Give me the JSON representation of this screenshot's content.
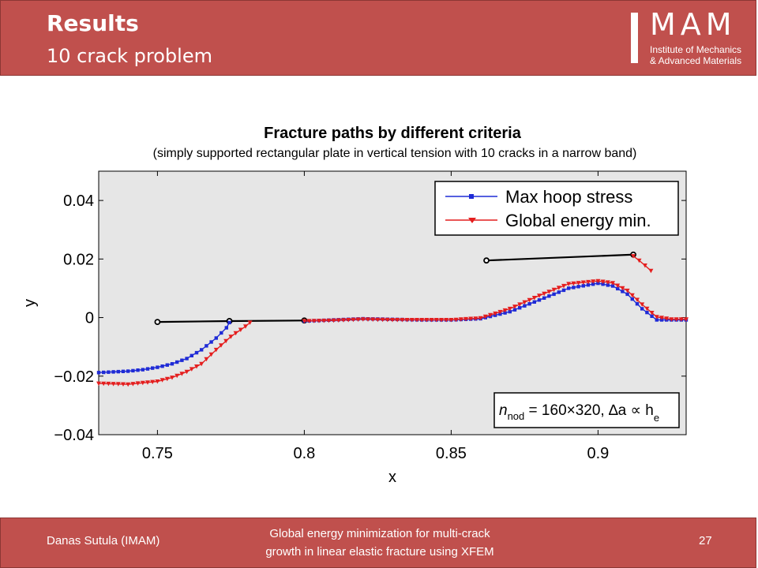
{
  "header": {
    "title": "Results",
    "subtitle": "10 crack problem",
    "logo": {
      "abbr": "MAM",
      "line1": "Institute of Mechanics",
      "line2": "& Advanced Materials"
    }
  },
  "footer": {
    "author": "Danas Sutula (IMAM)",
    "paper_line1": "Global energy minimization for multi-crack",
    "paper_line2": "growth in linear elastic fracture using XFEM",
    "page": "27"
  },
  "colors": {
    "header_bg": "#c0504d",
    "plot_bg": "#e6e6e6",
    "blue": "#1f2bd6",
    "red": "#e41e1e"
  },
  "chart_data": {
    "type": "line",
    "title": "Fracture paths by different criteria",
    "subtitle": "(simply supported rectangular plate in vertical tension with 10 cracks in a narrow band)",
    "xlabel": "x",
    "ylabel": "y",
    "xlim": [
      0.73,
      0.93
    ],
    "ylim": [
      -0.04,
      0.05
    ],
    "xticks": [
      "0.75",
      "0.8",
      "0.85",
      "0.9"
    ],
    "yticks": [
      "−0.04",
      "−0.02",
      "0",
      "0.02",
      "0.04"
    ],
    "xtick_values": [
      0.75,
      0.8,
      0.85,
      0.9
    ],
    "ytick_values": [
      -0.04,
      -0.02,
      0,
      0.02,
      0.04
    ],
    "legend_position": "top-right",
    "annotation": {
      "n": "n",
      "sub": "nod",
      "rest": " = 160×320, ∆a ∝ h",
      "sub2": "e"
    },
    "series": [
      {
        "name": "Max hoop stress",
        "segments": [
          [
            [
              0.73,
              -0.0188
            ],
            [
              0.74,
              -0.0183
            ],
            [
              0.745,
              -0.0178
            ],
            [
              0.75,
              -0.017
            ],
            [
              0.755,
              -0.0158
            ],
            [
              0.76,
              -0.014
            ],
            [
              0.765,
              -0.011
            ],
            [
              0.77,
              -0.007
            ],
            [
              0.7735,
              -0.0035
            ],
            [
              0.7745,
              -0.0017
            ]
          ],
          [
            [
              0.8,
              -0.0012
            ],
            [
              0.81,
              -0.0008
            ],
            [
              0.82,
              -0.0004
            ],
            [
              0.83,
              -0.0006
            ],
            [
              0.84,
              -0.0008
            ],
            [
              0.85,
              -0.0008
            ],
            [
              0.86,
              -0.0004
            ],
            [
              0.87,
              0.002
            ],
            [
              0.88,
              0.006
            ],
            [
              0.89,
              0.01
            ],
            [
              0.9,
              0.0117
            ],
            [
              0.905,
              0.0108
            ],
            [
              0.91,
              0.008
            ],
            [
              0.915,
              0.003
            ],
            [
              0.92,
              -0.0008
            ],
            [
              0.925,
              -0.0008
            ],
            [
              0.93,
              -0.0008
            ]
          ]
        ]
      },
      {
        "name": "Global energy min.",
        "segments": [
          [
            [
              0.73,
              -0.0225
            ],
            [
              0.74,
              -0.0228
            ],
            [
              0.75,
              -0.0218
            ],
            [
              0.755,
              -0.0205
            ],
            [
              0.76,
              -0.0185
            ],
            [
              0.765,
              -0.0158
            ],
            [
              0.77,
              -0.011
            ],
            [
              0.775,
              -0.0065
            ],
            [
              0.78,
              -0.003
            ],
            [
              0.7815,
              -0.0017
            ]
          ],
          [
            [
              0.8,
              -0.0012
            ],
            [
              0.81,
              -0.001
            ],
            [
              0.82,
              -0.0006
            ],
            [
              0.83,
              -0.0008
            ],
            [
              0.84,
              -0.0008
            ],
            [
              0.85,
              -0.0008
            ],
            [
              0.86,
              -0.0002
            ],
            [
              0.87,
              0.003
            ],
            [
              0.88,
              0.0075
            ],
            [
              0.89,
              0.0115
            ],
            [
              0.9,
              0.0125
            ],
            [
              0.905,
              0.0118
            ],
            [
              0.91,
              0.0092
            ],
            [
              0.915,
              0.0045
            ],
            [
              0.92,
              0.0002
            ],
            [
              0.925,
              -0.0006
            ],
            [
              0.93,
              -0.0006
            ]
          ],
          [
            [
              0.912,
              0.021
            ],
            [
              0.914,
              0.0195
            ],
            [
              0.916,
              0.0178
            ],
            [
              0.918,
              0.016
            ]
          ]
        ]
      }
    ],
    "initial_cracks": [
      [
        [
          0.75,
          -0.0015
        ],
        [
          0.7745,
          -0.0012
        ]
      ],
      [
        [
          0.7745,
          -0.0012
        ],
        [
          0.8,
          -0.001
        ]
      ],
      [
        [
          0.862,
          0.0195
        ],
        [
          0.912,
          0.0215
        ]
      ]
    ]
  }
}
